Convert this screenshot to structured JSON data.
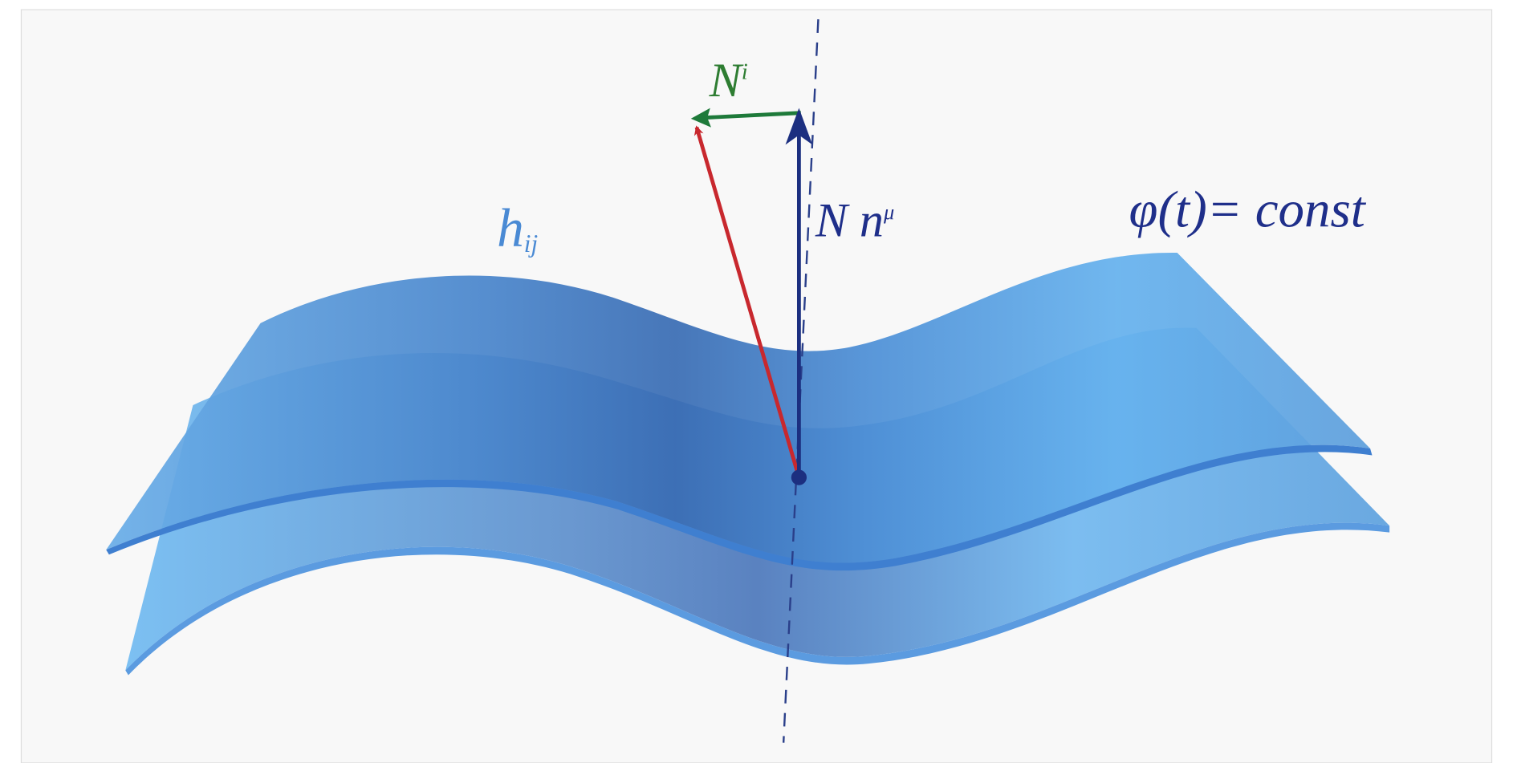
{
  "labels": {
    "shift": {
      "base": "N",
      "sup": "i"
    },
    "normal": {
      "base": "N n",
      "sup": "μ"
    },
    "metric": {
      "base": "h",
      "sub": "ij"
    },
    "surface": "φ(t)= const"
  }
}
